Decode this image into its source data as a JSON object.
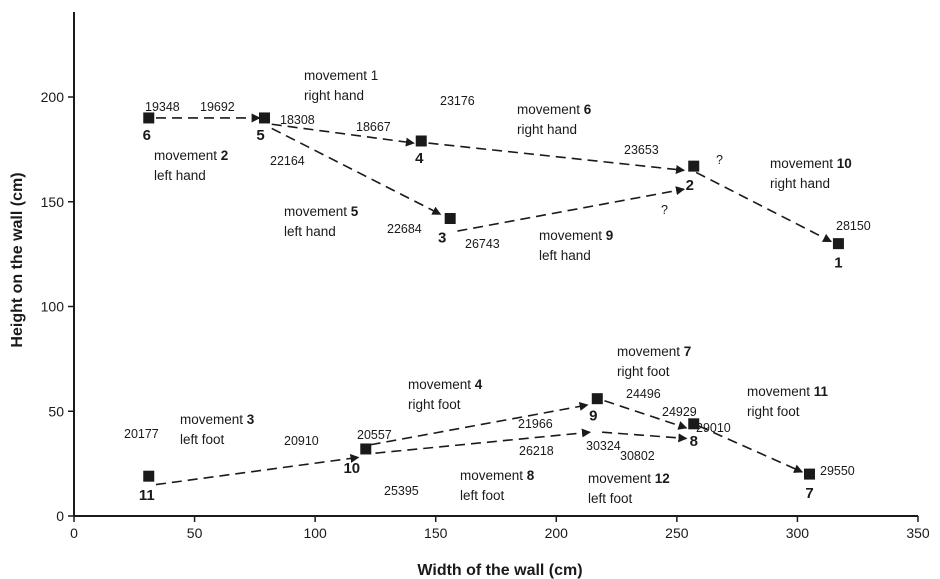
{
  "chart_data": {
    "type": "scatter",
    "xlabel": "Width of the wall (cm)",
    "ylabel": "Height on the wall (cm)",
    "xlim": [
      0,
      350
    ],
    "ylim": [
      0,
      240
    ],
    "x_ticks": [
      "0",
      "50",
      "100",
      "150",
      "200",
      "250",
      "300",
      "350"
    ],
    "y_ticks": [
      "0",
      "50",
      "100",
      "150",
      "200"
    ],
    "grid": false,
    "holds": [
      {
        "id": "1",
        "x": 317,
        "y": 130
      },
      {
        "id": "2",
        "x": 257,
        "y": 167
      },
      {
        "id": "3",
        "x": 156,
        "y": 142
      },
      {
        "id": "4",
        "x": 144,
        "y": 179
      },
      {
        "id": "5",
        "x": 79,
        "y": 190
      },
      {
        "id": "6",
        "x": 31,
        "y": 190
      },
      {
        "id": "7",
        "x": 305,
        "y": 20
      },
      {
        "id": "8",
        "x": 257,
        "y": 44
      },
      {
        "id": "9",
        "x": 217,
        "y": 56
      },
      {
        "id": "10",
        "x": 121,
        "y": 32
      },
      {
        "id": "11",
        "x": 31,
        "y": 19
      }
    ],
    "movements": [
      {
        "id": "1",
        "line1_pre": "movement 1",
        "line1_bold": "",
        "line2": "right hand",
        "from": [
          34,
          190
        ],
        "to": [
          77,
          190
        ]
      },
      {
        "id": "2",
        "line1_pre": "movement ",
        "line1_bold": "2",
        "line2": "left hand",
        "from": [
          82,
          187
        ],
        "to": [
          141,
          178
        ]
      },
      {
        "id": "3",
        "line1_pre": "movement ",
        "line1_bold": "3",
        "line2": "left foot",
        "from": [
          34,
          15
        ],
        "to": [
          118,
          28
        ]
      },
      {
        "id": "4",
        "line1_pre": "movement ",
        "line1_bold": "4",
        "line2": "right foot",
        "from": [
          123,
          34
        ],
        "to": [
          213,
          53
        ]
      },
      {
        "id": "5",
        "line1_pre": "movement ",
        "line1_bold": "5",
        "line2": "left hand",
        "from": [
          82,
          185
        ],
        "to": [
          152,
          144
        ]
      },
      {
        "id": "6",
        "line1_pre": "movement ",
        "line1_bold": "6",
        "line2": "right hand",
        "from": [
          147,
          178
        ],
        "to": [
          253,
          165
        ]
      },
      {
        "id": "7",
        "line1_pre": "movement ",
        "line1_bold": "7",
        "line2": "right foot",
        "from": [
          220,
          55
        ],
        "to": [
          254,
          42
        ]
      },
      {
        "id": "8",
        "line1_pre": "movement ",
        "line1_bold": "8",
        "line2": "left foot",
        "from": [
          125,
          30
        ],
        "to": [
          214,
          40
        ]
      },
      {
        "id": "9",
        "line1_pre": "movement ",
        "line1_bold": "9",
        "line2": "left hand",
        "from": [
          159,
          136
        ],
        "to": [
          253,
          156
        ]
      },
      {
        "id": "10",
        "line1_pre": "movement ",
        "line1_bold": "10",
        "line2": "right hand",
        "from": [
          258,
          164
        ],
        "to": [
          314,
          131
        ]
      },
      {
        "id": "11",
        "line1_pre": "movement ",
        "line1_bold": "11",
        "line2": "right foot",
        "from": [
          259,
          43
        ],
        "to": [
          302,
          21
        ]
      },
      {
        "id": "12",
        "line1_pre": "movement ",
        "line1_bold": "12",
        "line2": "left foot",
        "from": [
          219,
          40
        ],
        "to": [
          254,
          37
        ]
      }
    ],
    "frame_annotations": [
      "19348",
      "19692",
      "18308",
      "18667",
      "23176",
      "23653",
      "22164",
      "22684",
      "26743",
      "28150",
      "24496",
      "21966",
      "24929",
      "29010",
      "20910",
      "20557",
      "26218",
      "30324",
      "30802",
      "29550",
      "20177",
      "25395"
    ],
    "question_marks": [
      "?",
      "?"
    ]
  }
}
